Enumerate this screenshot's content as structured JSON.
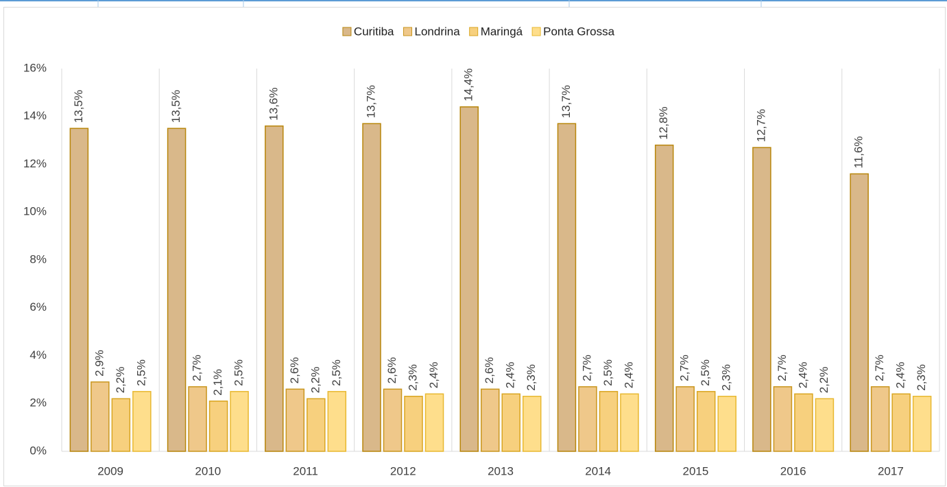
{
  "chart_data": {
    "type": "bar",
    "categories": [
      "2009",
      "2010",
      "2011",
      "2012",
      "2013",
      "2014",
      "2015",
      "2016",
      "2017"
    ],
    "series": [
      {
        "name": "Curitiba",
        "color": "#d9b88a",
        "values": [
          13.5,
          13.5,
          13.6,
          13.7,
          14.4,
          13.7,
          12.8,
          12.7,
          11.6
        ],
        "value_labels": [
          "13,5%",
          "13,5%",
          "13,6%",
          "13,7%",
          "14,4%",
          "13,7%",
          "12,8%",
          "12,7%",
          "11,6%"
        ]
      },
      {
        "name": "Londrina",
        "color": "#efc88a",
        "values": [
          2.9,
          2.7,
          2.6,
          2.6,
          2.6,
          2.7,
          2.7,
          2.7,
          2.7
        ],
        "value_labels": [
          "2,9%",
          "2,7%",
          "2,6%",
          "2,6%",
          "2,6%",
          "2,7%",
          "2,7%",
          "2,7%",
          "2,7%"
        ]
      },
      {
        "name": "Maringá",
        "color": "#f7d07e",
        "values": [
          2.2,
          2.1,
          2.2,
          2.3,
          2.4,
          2.5,
          2.5,
          2.4,
          2.4
        ],
        "value_labels": [
          "2,2%",
          "2,1%",
          "2,2%",
          "2,3%",
          "2,4%",
          "2,5%",
          "2,5%",
          "2,4%",
          "2,4%"
        ]
      },
      {
        "name": "Ponta Grossa",
        "color": "#fede8c",
        "values": [
          2.5,
          2.5,
          2.5,
          2.4,
          2.3,
          2.4,
          2.3,
          2.2,
          2.3
        ],
        "value_labels": [
          "2,5%",
          "2,5%",
          "2,5%",
          "2,4%",
          "2,3%",
          "2,4%",
          "2,3%",
          "2,2%",
          "2,3%"
        ]
      }
    ],
    "ylim": [
      0,
      16
    ],
    "yticks": [
      {
        "value": 0,
        "label": "0%"
      },
      {
        "value": 2,
        "label": "2%"
      },
      {
        "value": 4,
        "label": "4%"
      },
      {
        "value": 6,
        "label": "6%"
      },
      {
        "value": 8,
        "label": "8%"
      },
      {
        "value": 10,
        "label": "10%"
      },
      {
        "value": 12,
        "label": "12%"
      },
      {
        "value": 14,
        "label": "14%"
      },
      {
        "value": 16,
        "label": "16%"
      }
    ],
    "legend": "top"
  }
}
